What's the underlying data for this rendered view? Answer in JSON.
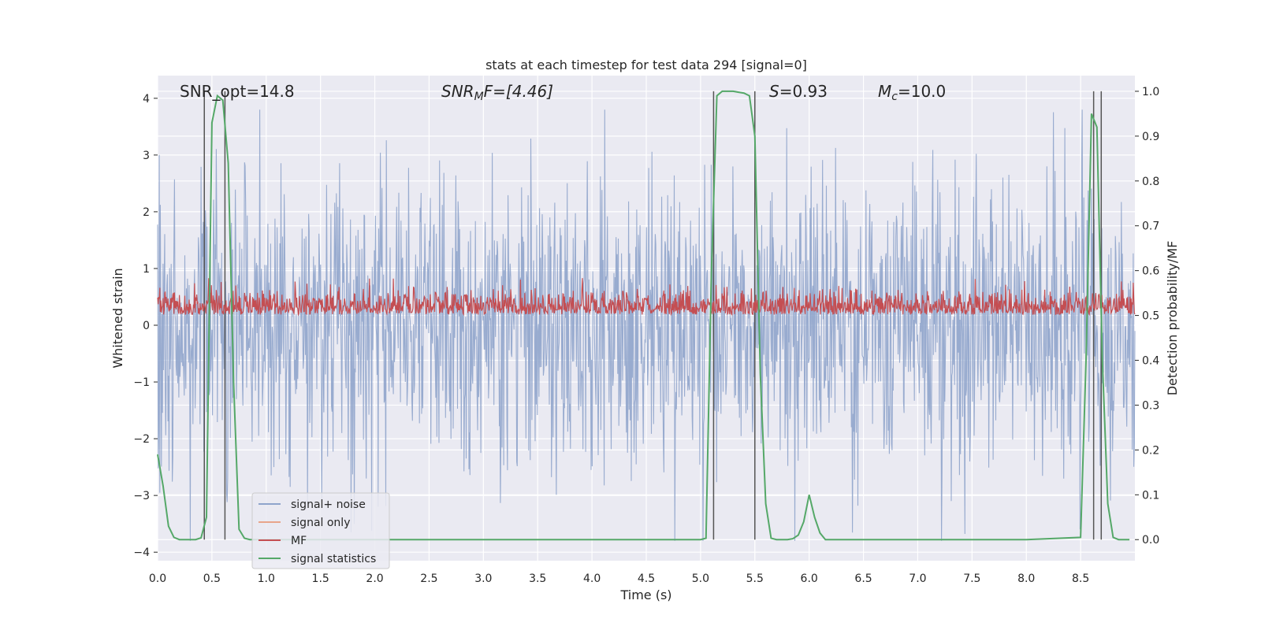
{
  "chart_data": {
    "type": "line",
    "title": "stats at each timestep for test data 294 [signal=0]",
    "xlabel": "Time (s)",
    "ylabel": "Whitened strain",
    "ylabel_right": "Detection probability/MF",
    "xlim": [
      0.0,
      9.0
    ],
    "ylim": [
      -4.15,
      4.4
    ],
    "ylim_right": [
      -0.047,
      1.035
    ],
    "x_ticks": [
      0.0,
      0.5,
      1.0,
      1.5,
      2.0,
      2.5,
      3.0,
      3.5,
      4.0,
      4.5,
      5.0,
      5.5,
      6.0,
      6.5,
      7.0,
      7.5,
      8.0,
      8.5
    ],
    "x_tick_labels": [
      "0.0",
      "0.5",
      "1.0",
      "1.5",
      "2.0",
      "2.5",
      "3.0",
      "3.5",
      "4.0",
      "4.5",
      "5.0",
      "5.5",
      "6.0",
      "6.5",
      "7.0",
      "7.5",
      "8.0",
      "8.5"
    ],
    "y_ticks": [
      -4,
      -3,
      -2,
      -1,
      0,
      1,
      2,
      3,
      4
    ],
    "y_tick_labels": [
      "−4",
      "−3",
      "−2",
      "−1",
      "0",
      "1",
      "2",
      "3",
      "4"
    ],
    "y_right_ticks": [
      0.0,
      0.1,
      0.2,
      0.3,
      0.4,
      0.5,
      0.6,
      0.7,
      0.8,
      0.9,
      1.0
    ],
    "y_right_tick_labels": [
      "0.0",
      "0.1",
      "0.2",
      "0.3",
      "0.4",
      "0.5",
      "0.6",
      "0.7",
      "0.8",
      "0.9",
      "1.0"
    ],
    "grid": true,
    "legend": {
      "position": "lower-left",
      "entries": [
        {
          "label": "signal+ noise",
          "color": "#8fa4cb"
        },
        {
          "label": "signal only",
          "color": "#e8a58a"
        },
        {
          "label": "MF",
          "color": "#c44e52"
        },
        {
          "label": "signal statistics",
          "color": "#55a868"
        }
      ]
    },
    "annotations": {
      "snr_opt": "SNR_opt=14.8",
      "snr_mf_main": "SNR",
      "snr_mf_sub": "M",
      "snr_mf_rest": "F=[4.46]",
      "s_main": "S",
      "s_rest": "=0.93",
      "mc_main": "M",
      "mc_sub": "c",
      "mc_rest": "=10.0"
    },
    "noise": {
      "name": "signal+ noise",
      "approx_range": [
        -3.8,
        3.8
      ],
      "samples": 1800,
      "seed": 294,
      "color": "#8fa4cb"
    },
    "mf": {
      "name": "MF",
      "approx_range_right_axis": [
        0.5,
        0.58
      ],
      "samples": 1800,
      "seed": 7,
      "color": "#c44e52"
    },
    "signal_statistics": {
      "name": "signal statistics",
      "color": "#55a868",
      "x": [
        0.0,
        0.05,
        0.1,
        0.15,
        0.2,
        0.25,
        0.3,
        0.35,
        0.4,
        0.45,
        0.5,
        0.55,
        0.6,
        0.65,
        0.7,
        0.75,
        0.8,
        0.85,
        0.9,
        0.95,
        1.0,
        1.5,
        2.0,
        2.5,
        3.0,
        3.5,
        4.0,
        4.5,
        5.0,
        5.05,
        5.1,
        5.15,
        5.2,
        5.25,
        5.3,
        5.35,
        5.4,
        5.45,
        5.5,
        5.55,
        5.6,
        5.65,
        5.7,
        5.75,
        5.8,
        5.85,
        5.9,
        5.95,
        6.0,
        6.05,
        6.1,
        6.15,
        6.2,
        6.3,
        6.5,
        7.0,
        7.5,
        8.0,
        8.5,
        8.55,
        8.6,
        8.65,
        8.7,
        8.75,
        8.8,
        8.85,
        8.9,
        8.95
      ],
      "y": [
        0.19,
        0.12,
        0.03,
        0.005,
        0.0,
        0.0,
        0.0,
        0.0,
        0.004,
        0.05,
        0.93,
        0.99,
        0.98,
        0.84,
        0.35,
        0.023,
        0.003,
        0.0,
        0.0,
        0.0,
        0.0,
        0.0,
        0.0,
        0.0,
        0.0,
        0.0,
        0.0,
        0.0,
        0.0,
        0.003,
        0.6,
        0.99,
        1.0,
        1.0,
        1.0,
        0.998,
        0.996,
        0.99,
        0.9,
        0.37,
        0.08,
        0.003,
        0.0,
        0.0,
        0.0,
        0.002,
        0.01,
        0.04,
        0.1,
        0.05,
        0.015,
        0.0,
        0.0,
        0.0,
        0.0,
        0.0,
        0.0,
        0.0,
        0.005,
        0.4,
        0.95,
        0.92,
        0.4,
        0.08,
        0.005,
        0.0,
        0.0,
        0.0
      ]
    },
    "vertical_lines": [
      0.43,
      0.62,
      5.12,
      5.5,
      8.62,
      8.69
    ],
    "vertical_line_color": "#555555"
  }
}
